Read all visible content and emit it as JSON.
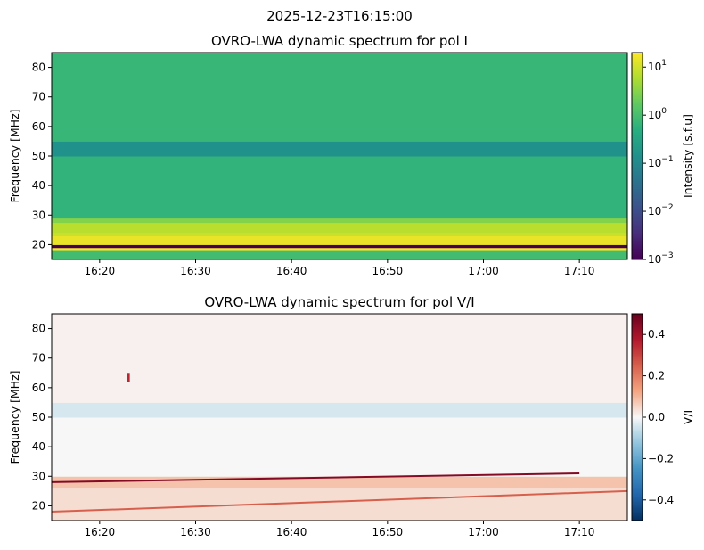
{
  "figure": {
    "suptitle": "2025-12-23T16:15:00"
  },
  "chart_data": [
    {
      "type": "heatmap",
      "title": "OVRO-LWA dynamic spectrum for pol I",
      "xlabel": "",
      "ylabel": "Frequency [MHz]",
      "xticks": [
        "16:20",
        "16:30",
        "16:40",
        "16:50",
        "17:00",
        "17:10"
      ],
      "xrange": [
        "16:15",
        "17:15"
      ],
      "yticks": [
        20,
        30,
        40,
        50,
        60,
        70,
        80
      ],
      "ylim": [
        15,
        85
      ],
      "colormap": "viridis",
      "colorbar": {
        "label": "Intensity [s.f.u]",
        "scale": "log",
        "range": [
          0.001,
          20
        ],
        "ticks": [
          {
            "base": "10",
            "exp": "1"
          },
          {
            "base": "10",
            "exp": "0"
          },
          {
            "base": "10",
            "exp": "−1"
          },
          {
            "base": "10",
            "exp": "−2"
          },
          {
            "base": "10",
            "exp": "−3"
          }
        ]
      },
      "bands": [
        {
          "freq_range": [
            15.0,
            18.0
          ],
          "intensity": 0.9
        },
        {
          "freq_range": [
            18.0,
            19.0
          ],
          "intensity": 20
        },
        {
          "freq_range": [
            19.0,
            20.0
          ],
          "intensity": 0.001
        },
        {
          "freq_range": [
            20.0,
            23.0
          ],
          "intensity": 15
        },
        {
          "freq_range": [
            23.0,
            24.2
          ],
          "intensity": 9
        },
        {
          "freq_range": [
            24.2,
            27.5
          ],
          "intensity": 7
        },
        {
          "freq_range": [
            27.5,
            29.0
          ],
          "intensity": 3
        },
        {
          "freq_range": [
            29.0,
            50.0
          ],
          "intensity": 0.6
        },
        {
          "freq_range": [
            50.0,
            55.0
          ],
          "intensity": 0.15
        },
        {
          "freq_range": [
            55.0,
            85.0
          ],
          "intensity": 0.7
        }
      ]
    },
    {
      "type": "heatmap",
      "title": "OVRO-LWA dynamic spectrum for pol V/I",
      "xlabel": "",
      "ylabel": "Frequency [MHz]",
      "xticks": [
        "16:20",
        "16:30",
        "16:40",
        "16:50",
        "17:00",
        "17:10"
      ],
      "xrange": [
        "16:15",
        "17:15"
      ],
      "yticks": [
        20,
        30,
        40,
        50,
        60,
        70,
        80
      ],
      "ylim": [
        15,
        85
      ],
      "colormap": "RdBu_r",
      "colorbar": {
        "label": "V/I",
        "scale": "linear",
        "range": [
          -0.5,
          0.5
        ],
        "ticks": [
          "0.4",
          "0.2",
          "0.0",
          "−0.2",
          "−0.4"
        ]
      },
      "bands": [
        {
          "freq_range": [
            15.0,
            26.0
          ],
          "value": 0.04
        },
        {
          "freq_range": [
            26.0,
            30.0
          ],
          "value": 0.08
        },
        {
          "freq_range": [
            30.0,
            50.0
          ],
          "value": 0.0
        },
        {
          "freq_range": [
            50.0,
            55.0
          ],
          "value": -0.04
        },
        {
          "freq_range": [
            55.0,
            85.0
          ],
          "value": 0.01
        }
      ],
      "features": [
        {
          "kind": "drifting-line",
          "start": {
            "time": "16:15",
            "freq": 28
          },
          "end": {
            "time": "17:10",
            "freq": 31
          },
          "value": 0.45
        },
        {
          "kind": "drifting-line",
          "start": {
            "time": "16:15",
            "freq": 18
          },
          "end": {
            "time": "17:15",
            "freq": 25
          },
          "value": 0.25
        },
        {
          "kind": "burst",
          "time": "16:23",
          "freq_range": [
            62,
            65
          ],
          "value": 0.35
        }
      ]
    }
  ]
}
